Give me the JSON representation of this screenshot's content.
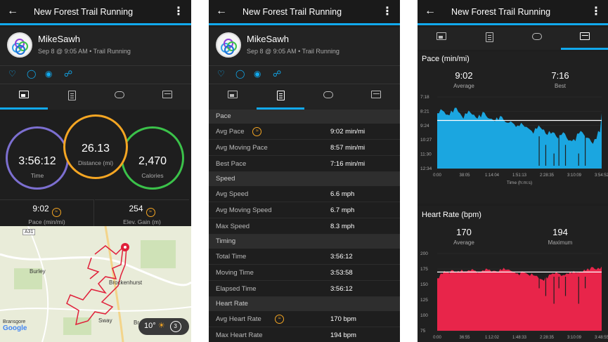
{
  "app_title": "New Forest Trail Running",
  "back_icon": "arrow-left-icon",
  "menu_icon": "kebab-menu-icon",
  "user": {
    "name": "MikeSawh",
    "subtitle": "Sep 8 @ 9:05 AM • Trail Running"
  },
  "action_icons": [
    "heart-icon",
    "comment-icon",
    "camera-icon",
    "share-icon"
  ],
  "tab_icons": [
    "summary-photo-icon",
    "stats-doc-icon",
    "laps-loop-icon",
    "charts-icon"
  ],
  "summary": {
    "time": {
      "value": "3:56:12",
      "label": "Time"
    },
    "distance": {
      "value": "26.13",
      "label": "Distance (mi)"
    },
    "calories": {
      "value": "2,470",
      "label": "Calories"
    },
    "pace": {
      "value": "9:02",
      "label": "Pace (min/mi)"
    },
    "elev_gain": {
      "value": "254",
      "label": "Elev. Gain (m)"
    }
  },
  "colors": {
    "accent": "#11a9ed",
    "time_ring": "#7c6fd0",
    "distance_ring": "#f5a623",
    "calories_ring": "#3bc24a",
    "pace_fill": "#1ba6e0",
    "hr_fill": "#e8254a"
  },
  "map": {
    "road_badge": "A31",
    "places": [
      "Burley",
      "Brockenhurst",
      "Sway",
      "Bransgore",
      "Br"
    ],
    "logo": "Google",
    "weather_temp": "10°",
    "weather_extra": "3"
  },
  "stats": [
    {
      "section": "Pace",
      "rows": [
        {
          "label": "Avg Pace",
          "value": "9:02 min/mi",
          "badge": true
        },
        {
          "label": "Avg Moving Pace",
          "value": "8:57 min/mi"
        },
        {
          "label": "Best Pace",
          "value": "7:16 min/mi"
        }
      ]
    },
    {
      "section": "Speed",
      "rows": [
        {
          "label": "Avg Speed",
          "value": "6.6 mph"
        },
        {
          "label": "Avg Moving Speed",
          "value": "6.7 mph"
        },
        {
          "label": "Max Speed",
          "value": "8.3 mph"
        }
      ]
    },
    {
      "section": "Timing",
      "rows": [
        {
          "label": "Total Time",
          "value": "3:56:12"
        },
        {
          "label": "Moving Time",
          "value": "3:53:58"
        },
        {
          "label": "Elapsed Time",
          "value": "3:56:12"
        }
      ]
    },
    {
      "section": "Heart Rate",
      "rows": [
        {
          "label": "Avg Heart Rate",
          "value": "170 bpm",
          "badge": true
        },
        {
          "label": "Max Heart Rate",
          "value": "194 bpm"
        }
      ]
    }
  ],
  "pace_chart": {
    "title": "Pace (min/mi)",
    "avg_value": "9:02",
    "avg_label": "Average",
    "best_value": "7:16",
    "best_label": "Best"
  },
  "hr_chart": {
    "title": "Heart Rate (bpm)",
    "avg_value": "170",
    "avg_label": "Average",
    "max_value": "194",
    "max_label": "Maximum"
  },
  "chart_data": [
    {
      "type": "area",
      "title": "Pace (min/mi)",
      "xlabel": "Time (h:m:s)",
      "ylabel": "",
      "x_ticks": [
        "0:00",
        "38:05",
        "1:14:04",
        "1:51:13",
        "2:28:35",
        "3:10:09",
        "3:54:52"
      ],
      "y_ticks": [
        "7:18",
        "8:21",
        "9:24",
        "10:27",
        "11:30",
        "12:34"
      ],
      "y_inverted": true,
      "ylim": [
        7.3,
        12.57
      ],
      "average_line": 9.03,
      "series": [
        {
          "values": [
            8.5,
            8.2,
            8.4,
            8.6,
            8.3,
            8.1,
            8.4,
            8.7,
            8.5,
            8.3,
            8.6,
            8.8,
            8.6,
            8.4,
            8.7,
            8.9,
            9.0,
            8.8,
            8.7,
            9.0,
            9.2,
            9.1,
            9.3,
            9.4,
            9.2,
            9.5,
            9.6,
            9.8,
            9.6,
            9.4,
            9.7,
            10.0,
            9.8,
            9.9,
            10.2,
            10.1,
            9.9,
            10.3,
            10.5,
            10.4,
            10.0,
            9.8,
            10.1,
            10.3,
            10.6,
            10.4,
            9.8,
            8.5
          ]
        }
      ]
    },
    {
      "type": "area",
      "title": "Heart Rate (bpm)",
      "xlabel": "",
      "ylabel": "",
      "x_ticks": [
        "0:00",
        "36:55",
        "1:12:02",
        "1:48:33",
        "2:28:35",
        "3:10:09",
        "3:48:55"
      ],
      "y_ticks": [
        "75",
        "100",
        "125",
        "150",
        "175",
        "200"
      ],
      "ylim": [
        75,
        200
      ],
      "average_line": 170,
      "series": [
        {
          "values": [
            160,
            168,
            172,
            171,
            173,
            170,
            172,
            174,
            171,
            173,
            175,
            172,
            170,
            173,
            176,
            174,
            172,
            171,
            175,
            177,
            174,
            172,
            170,
            168,
            171,
            169,
            166,
            168,
            164,
            160,
            158,
            163,
            166,
            168,
            170,
            167,
            165,
            168,
            170,
            172,
            169,
            171,
            174,
            176,
            178,
            175,
            177,
            179
          ]
        }
      ]
    }
  ]
}
